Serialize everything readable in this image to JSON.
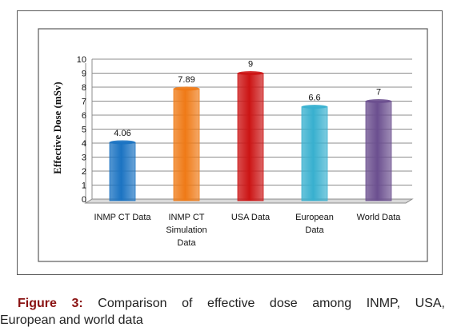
{
  "chart_data": {
    "type": "bar",
    "categories": [
      [
        "INMP CT Data"
      ],
      [
        "INMP CT",
        "Simulation",
        "Data"
      ],
      [
        "USA Data"
      ],
      [
        "European",
        "Data"
      ],
      [
        "World Data"
      ]
    ],
    "values": [
      4.06,
      7.89,
      9,
      6.6,
      7
    ],
    "value_labels": [
      "4.06",
      "7.89",
      "9",
      "6.6",
      "7"
    ],
    "colors": [
      "#1b73c2",
      "#ef7a16",
      "#cc1414",
      "#38b0cf",
      "#6b4f8f"
    ],
    "ylabel": "Effective Dose (mSv)",
    "ylim": [
      0,
      10
    ],
    "yticks": [
      "0",
      "1",
      "2",
      "3",
      "4",
      "5",
      "6",
      "7",
      "8",
      "9",
      "10"
    ],
    "grid": true
  },
  "caption": {
    "label": "Figure 3:",
    "text_line1": "Comparison of effective dose among INMP, USA,",
    "text_line2": "European and world data"
  }
}
